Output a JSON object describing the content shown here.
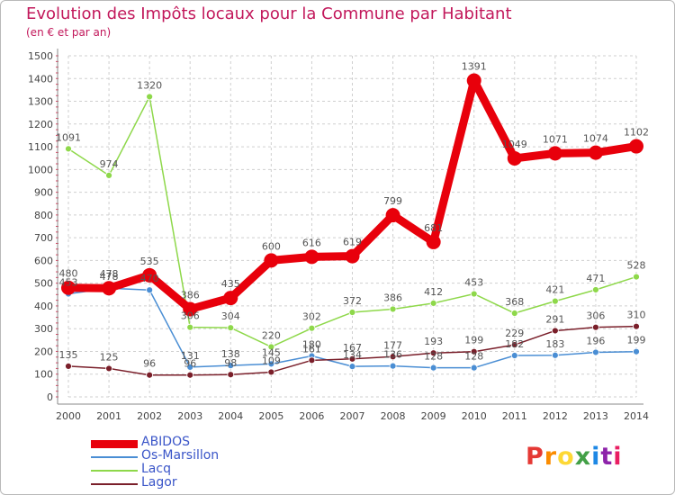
{
  "header": {
    "title": "Evolution des Impôts locaux pour la Commune par Habitant",
    "subtitle": "(en € et par an)"
  },
  "logo": {
    "text": "Proxiti",
    "colors": [
      "#e53935",
      "#fb8c00",
      "#fdd835",
      "#43a047",
      "#1e88e5",
      "#8e24aa",
      "#e91e63"
    ]
  },
  "chart_data": {
    "type": "line",
    "title": "Evolution des Impôts locaux pour la Commune par Habitant",
    "subtitle": "(en € et par an)",
    "x": [
      "2000",
      "2001",
      "2002",
      "2003",
      "2004",
      "2005",
      "2006",
      "2007",
      "2008",
      "2009",
      "2010",
      "2011",
      "2012",
      "2013",
      "2014"
    ],
    "yticks": [
      0,
      100,
      200,
      300,
      400,
      500,
      600,
      700,
      800,
      900,
      1000,
      1100,
      1200,
      1300,
      1400,
      1500
    ],
    "ylim": [
      0,
      1500
    ],
    "grid": true,
    "legend_position": "bottom-left",
    "series": [
      {
        "name": "ABIDOS",
        "color": "#e8000b",
        "values": [
          480,
          478,
          535,
          386,
          435,
          600,
          616,
          619,
          799,
          681,
          1391,
          1049,
          1071,
          1074,
          1102
        ]
      },
      {
        "name": "Os-Marsillon",
        "color": "#4a8ed4",
        "values": [
          453,
          478,
          470,
          131,
          138,
          145,
          180,
          134,
          136,
          128,
          128,
          182,
          183,
          196,
          199
        ]
      },
      {
        "name": "Lacq",
        "color": "#8ed84a",
        "values": [
          1091,
          974,
          1320,
          306,
          304,
          220,
          302,
          372,
          386,
          412,
          453,
          368,
          421,
          471,
          528
        ]
      },
      {
        "name": "Lagor",
        "color": "#7a1f2a",
        "values": [
          135,
          125,
          96,
          96,
          98,
          109,
          161,
          167,
          177,
          193,
          199,
          229,
          291,
          306,
          310
        ]
      }
    ]
  }
}
